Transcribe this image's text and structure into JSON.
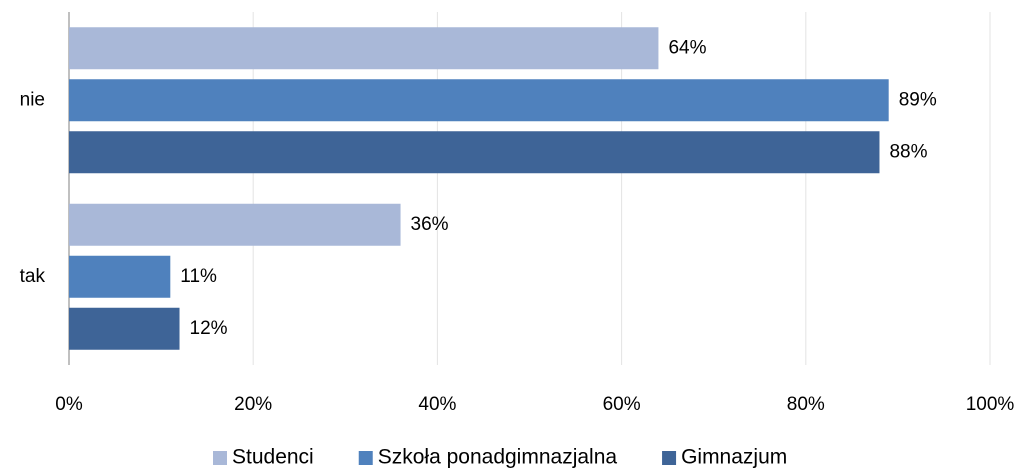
{
  "chart_data": {
    "type": "hbar",
    "categories": [
      "nie",
      "tak"
    ],
    "series": [
      {
        "name": "Studenci",
        "color": "#a9b8d8",
        "values": [
          64,
          36
        ],
        "value_labels": [
          "64%",
          "36%"
        ]
      },
      {
        "name": "Szkoła ponadgimnazjalna",
        "color": "#4f81bd",
        "values": [
          89,
          11
        ],
        "value_labels": [
          "89%",
          "11%"
        ]
      },
      {
        "name": "Gimnazjum",
        "color": "#3e6497",
        "values": [
          88,
          12
        ],
        "value_labels": [
          "88%",
          "12%"
        ]
      }
    ],
    "xlim": [
      0,
      100
    ],
    "xticks": [
      {
        "value": 0,
        "label": "0%"
      },
      {
        "value": 20,
        "label": "20%"
      },
      {
        "value": 40,
        "label": "40%"
      },
      {
        "value": 60,
        "label": "60%"
      },
      {
        "value": 80,
        "label": "80%"
      },
      {
        "value": 100,
        "label": "100%"
      }
    ],
    "grid": true,
    "legend": "bottom"
  }
}
